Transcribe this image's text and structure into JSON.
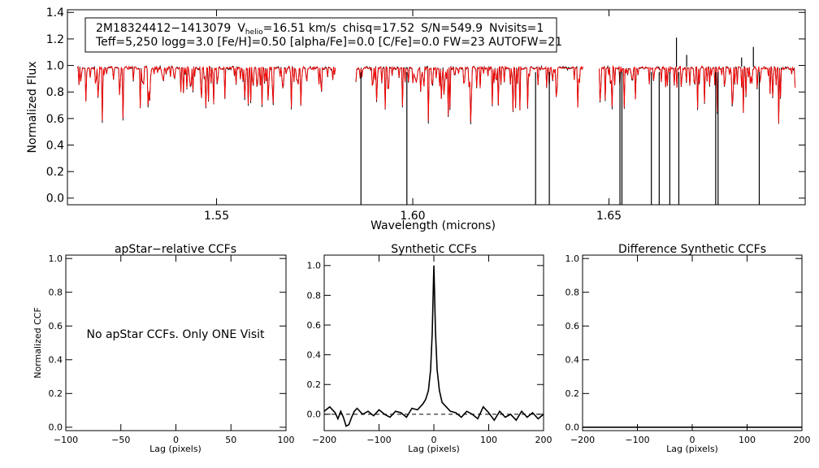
{
  "chart_data": [
    {
      "id": "spectrum",
      "type": "line",
      "title": "",
      "xlabel": "Wavelength (microns)",
      "ylabel": "Normalized Flux",
      "xlim": [
        1.512,
        1.7
      ],
      "ylim": [
        -0.05,
        1.42
      ],
      "xticks": [
        {
          "v": 1.55,
          "label": "1.55"
        },
        {
          "v": 1.6,
          "label": "1.60"
        },
        {
          "v": 1.65,
          "label": "1.65"
        }
      ],
      "yticks": [
        {
          "v": 0.0,
          "label": "0.0"
        },
        {
          "v": 0.2,
          "label": "0.2"
        },
        {
          "v": 0.4,
          "label": "0.4"
        },
        {
          "v": 0.6,
          "label": "0.6"
        },
        {
          "v": 0.8,
          "label": "0.8"
        },
        {
          "v": 1.0,
          "label": "1.0"
        },
        {
          "v": 1.2,
          "label": "1.2"
        },
        {
          "v": 1.4,
          "label": "1.4"
        }
      ],
      "info_box": {
        "line1": {
          "star": "2M18324412−1413079",
          "vhelio_prefix": "V",
          "vhelio_sub": "helio",
          "vhelio_value": "=16.51 km/s",
          "chisq": "chisq=17.52",
          "sn": "S/N=549.9",
          "nvisits": "Nvisits=1"
        },
        "line2": "Teff=5,250 logg=3.0 [Fe/H]=0.50 [alpha/Fe]=0.0 [C/Fe]=0.0 FW=23 AUTOFW=21"
      },
      "segments": [
        [
          1.5145,
          1.5805
        ],
        [
          1.5855,
          1.6435
        ],
        [
          1.6475,
          1.6975
        ]
      ],
      "series": [
        {
          "name": "observed",
          "color": "#000000"
        },
        {
          "name": "synthetic",
          "color": "#ff0000"
        }
      ],
      "deep_drops_observed": [
        1.5868,
        1.5985,
        1.6313,
        1.6348,
        1.6528,
        1.6533,
        1.6608,
        1.6628,
        1.6655,
        1.6678,
        1.6772,
        1.6778,
        1.6883
      ],
      "drop_floor": -0.05,
      "spikes_observed": [
        {
          "x": 1.6672,
          "y": 1.21
        },
        {
          "x": 1.6698,
          "y": 1.08
        },
        {
          "x": 1.6838,
          "y": 1.06
        },
        {
          "x": 1.6868,
          "y": 1.14
        }
      ]
    },
    {
      "id": "apstar-ccf",
      "type": "line",
      "title": "apStar−relative CCFs",
      "xlabel": "Lag (pixels)",
      "ylabel": "Normalized CCF",
      "xlim": [
        -100,
        100
      ],
      "ylim": [
        -0.02,
        1.02
      ],
      "xticks": [
        {
          "v": -100,
          "label": "−100"
        },
        {
          "v": -50,
          "label": "−50"
        },
        {
          "v": 0,
          "label": "0"
        },
        {
          "v": 50,
          "label": "50"
        },
        {
          "v": 100,
          "label": "100"
        }
      ],
      "yticks": [
        {
          "v": 0.0,
          "label": "0.0"
        },
        {
          "v": 0.2,
          "label": "0.2"
        },
        {
          "v": 0.4,
          "label": "0.4"
        },
        {
          "v": 0.6,
          "label": "0.6"
        },
        {
          "v": 0.8,
          "label": "0.8"
        },
        {
          "v": 1.0,
          "label": "1.0"
        }
      ],
      "message": "No apStar CCFs.  Only ONE Visit",
      "series": []
    },
    {
      "id": "synthetic-ccf",
      "type": "line",
      "title": "Synthetic CCFs",
      "xlabel": "Lag (pixels)",
      "ylabel": "",
      "xlim": [
        -200,
        200
      ],
      "ylim": [
        -0.11,
        1.07
      ],
      "xticks": [
        {
          "v": -200,
          "label": "−200"
        },
        {
          "v": -100,
          "label": "−100"
        },
        {
          "v": 0,
          "label": "0"
        },
        {
          "v": 100,
          "label": "100"
        },
        {
          "v": 200,
          "label": "200"
        }
      ],
      "yticks": [
        {
          "v": 0.0,
          "label": "0.0"
        },
        {
          "v": 0.2,
          "label": "0.2"
        },
        {
          "v": 0.4,
          "label": "0.4"
        },
        {
          "v": 0.6,
          "label": "0.6"
        },
        {
          "v": 0.8,
          "label": "0.8"
        },
        {
          "v": 1.0,
          "label": "1.0"
        }
      ],
      "baseline": 0.0,
      "series": [
        {
          "name": "ccf",
          "color": "#000000",
          "x": [
            -200,
            -190,
            -180,
            -175,
            -170,
            -165,
            -160,
            -155,
            -150,
            -145,
            -140,
            -130,
            -120,
            -110,
            -100,
            -90,
            -80,
            -70,
            -60,
            -50,
            -40,
            -30,
            -20,
            -15,
            -10,
            -6,
            -3,
            -1,
            0,
            1,
            3,
            6,
            10,
            15,
            20,
            30,
            40,
            50,
            60,
            70,
            80,
            90,
            100,
            110,
            120,
            130,
            140,
            150,
            160,
            170,
            180,
            190,
            200
          ],
          "y": [
            0.02,
            0.05,
            0.01,
            -0.03,
            0.02,
            -0.02,
            -0.08,
            -0.07,
            -0.02,
            0.02,
            0.04,
            0.0,
            0.02,
            -0.01,
            0.03,
            0.0,
            -0.02,
            0.02,
            0.01,
            -0.02,
            0.04,
            0.03,
            0.07,
            0.1,
            0.16,
            0.3,
            0.55,
            0.85,
            1.0,
            0.85,
            0.55,
            0.3,
            0.16,
            0.08,
            0.06,
            0.02,
            0.01,
            -0.02,
            0.02,
            0.0,
            -0.03,
            0.05,
            0.01,
            -0.04,
            0.02,
            -0.02,
            0.0,
            -0.04,
            0.02,
            -0.02,
            0.01,
            -0.03,
            0.0
          ]
        }
      ]
    },
    {
      "id": "difference-ccf",
      "type": "line",
      "title": "Difference Synthetic CCFs",
      "xlabel": "Lag (pixels)",
      "ylabel": "",
      "xlim": [
        -200,
        200
      ],
      "ylim": [
        -0.02,
        1.02
      ],
      "xticks": [
        {
          "v": -200,
          "label": "−200"
        },
        {
          "v": -100,
          "label": "−100"
        },
        {
          "v": 0,
          "label": "0"
        },
        {
          "v": 100,
          "label": "100"
        },
        {
          "v": 200,
          "label": "200"
        }
      ],
      "yticks": [
        {
          "v": 0.0,
          "label": "0.0"
        },
        {
          "v": 0.2,
          "label": "0.2"
        },
        {
          "v": 0.4,
          "label": "0.4"
        },
        {
          "v": 0.6,
          "label": "0.6"
        },
        {
          "v": 0.8,
          "label": "0.8"
        },
        {
          "v": 1.0,
          "label": "1.0"
        }
      ],
      "series": [
        {
          "name": "difference",
          "color": "#000000",
          "x": [
            -200,
            200
          ],
          "y": [
            0.0,
            0.0
          ]
        }
      ]
    }
  ]
}
